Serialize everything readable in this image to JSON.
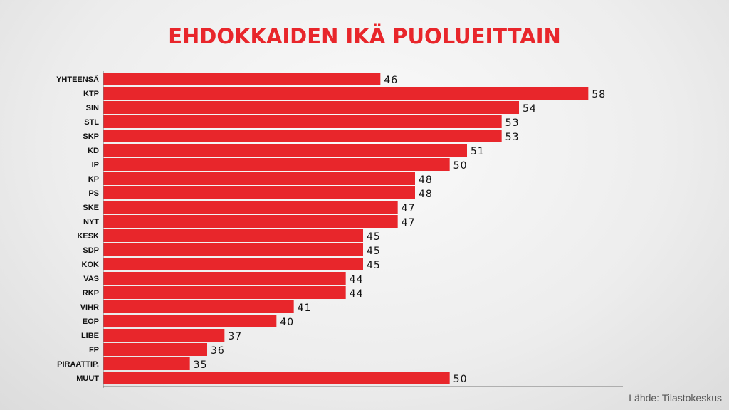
{
  "chart_data": {
    "type": "bar",
    "orientation": "horizontal",
    "title": "EHDOKKAIDEN IKÄ PUOLUEITTAIN",
    "source": "Lähde: Tilastokeskus",
    "categories": [
      "YHTEENSÄ",
      "KTP",
      "SIN",
      "STL",
      "SKP",
      "KD",
      "IP",
      "KP",
      "PS",
      "SKE",
      "NYT",
      "KESK",
      "SDP",
      "KOK",
      "VAS",
      "RKP",
      "VIHR",
      "EOP",
      "LIBE",
      "FP",
      "PIRAATTIP.",
      "MUUT"
    ],
    "values": [
      46,
      58,
      54,
      53,
      53,
      51,
      50,
      48,
      48,
      47,
      47,
      45,
      45,
      45,
      44,
      44,
      41,
      40,
      37,
      36,
      35,
      50
    ],
    "xlim": [
      30,
      60
    ],
    "grid": false,
    "data_labels": true,
    "bar_color": "#e8262b",
    "title_color": "#e8262b"
  }
}
